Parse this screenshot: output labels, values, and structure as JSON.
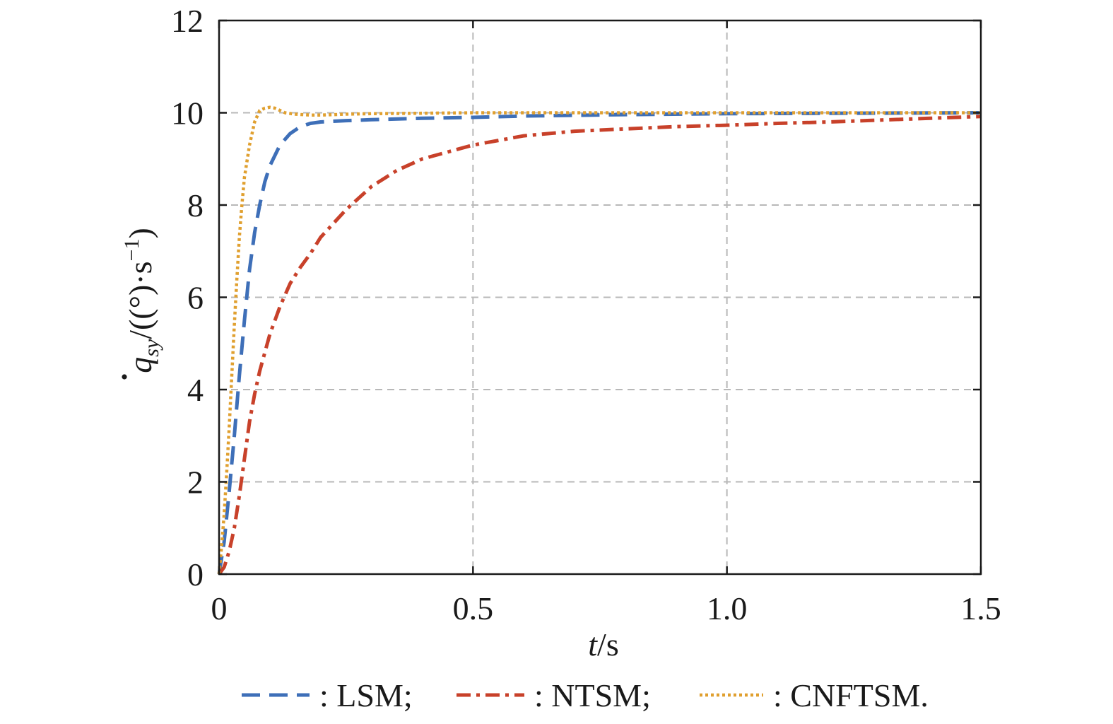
{
  "chart_data": {
    "type": "line",
    "title": "",
    "xlabel": {
      "italic": "t",
      "rest": "/s"
    },
    "ylabel": {
      "italic_symbol": "q",
      "subscript": "sy",
      "unit_prefix": "/((°)·s",
      "superscript": "−1",
      "unit_suffix": ")"
    },
    "xlim": [
      0,
      1.5
    ],
    "ylim": [
      0,
      12
    ],
    "x_ticks": [
      0,
      0.5,
      1.0,
      1.5
    ],
    "x_tick_labels": [
      "0",
      "0.5",
      "1.0",
      "1.5"
    ],
    "y_ticks": [
      0,
      2,
      4,
      6,
      8,
      10,
      12
    ],
    "y_tick_labels": [
      "0",
      "2",
      "4",
      "6",
      "8",
      "10",
      "12"
    ],
    "grid": true,
    "legend_placement": "bottom",
    "series": [
      {
        "name": ": LSM;",
        "color": "#3e6fb8",
        "style": "dashed",
        "x": [
          0,
          0.01,
          0.02,
          0.03,
          0.04,
          0.05,
          0.06,
          0.07,
          0.08,
          0.09,
          0.1,
          0.12,
          0.14,
          0.16,
          0.18,
          0.2,
          0.25,
          0.3,
          0.4,
          0.5,
          0.6,
          0.8,
          1.0,
          1.2,
          1.5
        ],
        "y": [
          0,
          0.7,
          1.8,
          3.0,
          4.3,
          5.5,
          6.6,
          7.4,
          8.0,
          8.5,
          8.85,
          9.3,
          9.55,
          9.7,
          9.77,
          9.8,
          9.83,
          9.85,
          9.88,
          9.9,
          9.93,
          9.96,
          9.98,
          9.99,
          10.0
        ]
      },
      {
        "name": ": NTSM;",
        "color": "#c8412a",
        "style": "dash-dot",
        "x": [
          0,
          0.01,
          0.02,
          0.03,
          0.04,
          0.05,
          0.06,
          0.07,
          0.08,
          0.1,
          0.12,
          0.14,
          0.16,
          0.18,
          0.2,
          0.25,
          0.3,
          0.35,
          0.4,
          0.45,
          0.5,
          0.6,
          0.7,
          0.8,
          0.9,
          1.0,
          1.1,
          1.2,
          1.3,
          1.4,
          1.5
        ],
        "y": [
          0,
          0.15,
          0.5,
          1.0,
          1.7,
          2.5,
          3.3,
          3.9,
          4.4,
          5.2,
          5.8,
          6.3,
          6.65,
          6.95,
          7.3,
          7.9,
          8.4,
          8.75,
          9.0,
          9.15,
          9.3,
          9.5,
          9.6,
          9.65,
          9.7,
          9.73,
          9.77,
          9.8,
          9.84,
          9.88,
          9.92
        ]
      },
      {
        "name": ": CNFTSM.",
        "color": "#e0a030",
        "style": "dotted",
        "x": [
          0,
          0.005,
          0.01,
          0.015,
          0.02,
          0.025,
          0.03,
          0.035,
          0.04,
          0.045,
          0.05,
          0.06,
          0.07,
          0.08,
          0.09,
          0.1,
          0.11,
          0.12,
          0.13,
          0.15,
          0.18,
          0.2,
          0.25,
          0.3,
          0.5,
          1.0,
          1.5
        ],
        "y": [
          0,
          0.6,
          1.3,
          2.2,
          3.2,
          4.3,
          5.4,
          6.4,
          7.3,
          8.0,
          8.6,
          9.3,
          9.8,
          10.05,
          10.1,
          10.12,
          10.1,
          10.05,
          10.0,
          9.97,
          9.95,
          9.95,
          9.97,
          9.98,
          10.0,
          10.0,
          10.0
        ]
      }
    ]
  }
}
